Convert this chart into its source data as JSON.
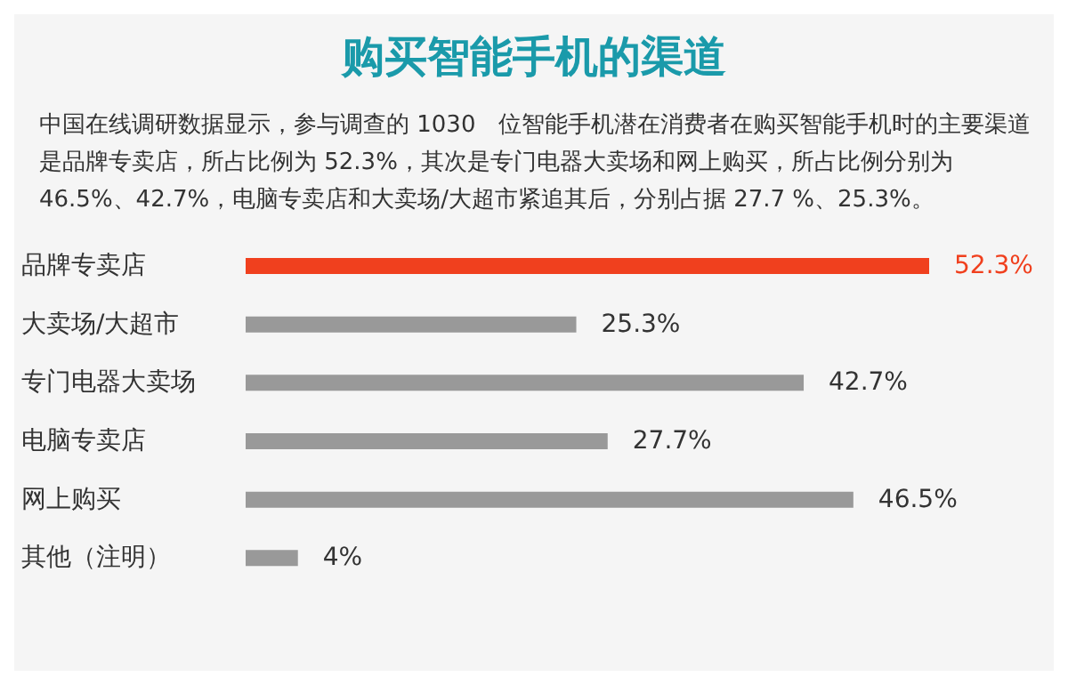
{
  "chart_data": {
    "type": "bar",
    "orientation": "horizontal",
    "title": "购买智能手机的渠道",
    "subtitle": "中国在线调研数据显示，参与调查的 1030　位智能手机潜在消费者在购买智能手机时的主要渠道是品牌专卖店，所占比例为 52.3%，其次是专门电器大卖场和网上购买，所占比例分别为 46.5%、42.7%，电脑专卖店和大卖场/大超市紧追其后，分别占据 27.7 %、25.3%。",
    "categories": [
      "品牌专卖店",
      "大卖场/大超市",
      "专门电器大卖场",
      "电脑专卖店",
      "网上购买",
      "其他（注明）"
    ],
    "values": [
      52.3,
      25.3,
      42.7,
      27.7,
      46.5,
      4
    ],
    "value_labels": [
      "52.3%",
      "25.3%",
      "42.7%",
      "27.7%",
      "46.5%",
      "4%"
    ],
    "colors": [
      "#f0401e",
      "#999999",
      "#999999",
      "#999999",
      "#999999",
      "#999999"
    ],
    "grid": false,
    "legend": false
  }
}
